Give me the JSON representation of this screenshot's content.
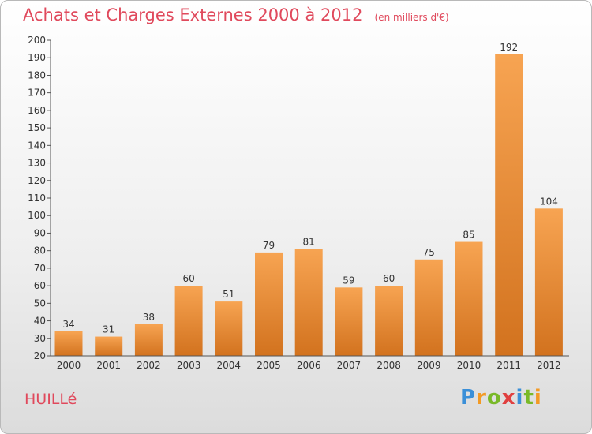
{
  "header": {
    "title": "Achats et Charges Externes 2000 à 2012",
    "subtitle": "(en milliers d'€)"
  },
  "location": "HUILLé",
  "brand": {
    "letters": [
      {
        "char": "P",
        "color": "#3a8fd8"
      },
      {
        "char": "r",
        "color": "#f39a24"
      },
      {
        "char": "o",
        "color": "#79b928"
      },
      {
        "char": "x",
        "color": "#e04040"
      },
      {
        "char": "i",
        "color": "#3a8fd8"
      },
      {
        "char": "t",
        "color": "#79b928"
      },
      {
        "char": "i",
        "color": "#f39a24"
      }
    ]
  },
  "colors": {
    "bar_top": "#f7a452",
    "bar_bottom": "#d2721e",
    "accent": "#e0495c"
  },
  "chart_data": {
    "type": "bar",
    "title": "Achats et Charges Externes 2000 à 2012",
    "subtitle": "(en milliers d'€)",
    "categories": [
      "2000",
      "2001",
      "2002",
      "2003",
      "2004",
      "2005",
      "2006",
      "2007",
      "2008",
      "2009",
      "2010",
      "2011",
      "2012"
    ],
    "values": [
      34,
      31,
      38,
      60,
      51,
      79,
      81,
      59,
      60,
      75,
      85,
      192,
      104
    ],
    "data_labels": [
      "34",
      "31",
      "38",
      "60",
      "51",
      "79",
      "81",
      "59",
      "60",
      "75",
      "85",
      "192",
      "104"
    ],
    "yticks": [
      20,
      30,
      40,
      50,
      60,
      70,
      80,
      90,
      100,
      110,
      120,
      130,
      140,
      150,
      160,
      170,
      180,
      190,
      200
    ],
    "ylim": [
      20,
      200
    ],
    "xlabel": "",
    "ylabel": "",
    "grid": false,
    "legend": "none"
  }
}
